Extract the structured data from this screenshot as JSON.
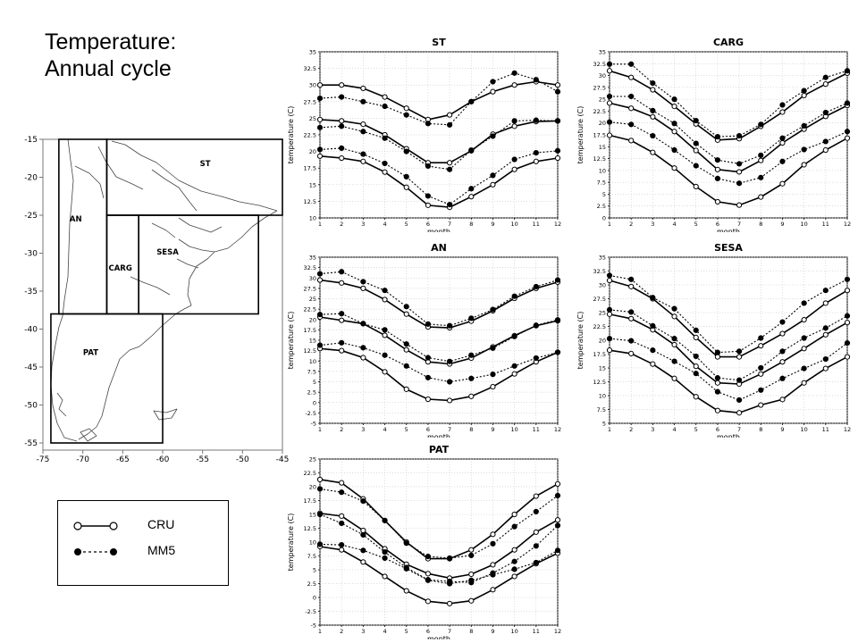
{
  "slide": {
    "title_line1": "Temperature:",
    "title_line2": "Annual cycle"
  },
  "legend": {
    "items": [
      {
        "label": "CRU",
        "style": "solid-open-circle"
      },
      {
        "label": "MM5",
        "style": "dotted-filled-circle"
      }
    ]
  },
  "map": {
    "lat_ticks": [
      "-15",
      "-20",
      "-25",
      "-30",
      "-35",
      "-40",
      "-45",
      "-50",
      "-55"
    ],
    "lon_ticks": [
      "-75",
      "-70",
      "-65",
      "-60",
      "-55",
      "-50",
      "-45"
    ],
    "regions": [
      {
        "name": "ST",
        "lon": [
          -67,
          -45
        ],
        "lat": [
          -15,
          -25
        ]
      },
      {
        "name": "AN",
        "lon": [
          -73,
          -67
        ],
        "lat": [
          -15,
          -38
        ]
      },
      {
        "name": "CARG",
        "lon": [
          -67,
          -63
        ],
        "lat": [
          -25,
          -38
        ]
      },
      {
        "name": "SESA",
        "lon": [
          -63,
          -48
        ],
        "lat": [
          -25,
          -38
        ]
      },
      {
        "name": "PAT",
        "lon": [
          -74,
          -60
        ],
        "lat": [
          -38,
          -55
        ]
      }
    ]
  },
  "chart_data": [
    {
      "type": "line",
      "title": "ST",
      "xlabel": "month",
      "ylabel": "temperature (C)",
      "x": [
        1,
        2,
        3,
        4,
        5,
        6,
        7,
        8,
        9,
        10,
        11,
        12
      ],
      "xlim": [
        1,
        12
      ],
      "ylim": [
        10,
        35
      ],
      "yticks": [
        "10",
        "12.5",
        "15",
        "17.5",
        "20",
        "22.5",
        "25",
        "27.5",
        "30",
        "32.5",
        "35"
      ],
      "grid": true,
      "series": [
        {
          "name": "CRU",
          "values": [
            30,
            30,
            29.5,
            28.2,
            26.5,
            24.8,
            25.5,
            27.5,
            29,
            30,
            30.5,
            30
          ]
        },
        {
          "name": "MM5",
          "values": [
            28,
            28.2,
            27.5,
            26.8,
            25.5,
            24.2,
            24,
            27.5,
            30.5,
            31.8,
            30.8,
            29
          ]
        },
        {
          "name": "CRU",
          "values": [
            24.8,
            24.6,
            24.1,
            22.5,
            20.4,
            18.3,
            18.3,
            20.1,
            22.6,
            23.8,
            24.5,
            24.6
          ]
        },
        {
          "name": "MM5",
          "values": [
            23.6,
            23.8,
            23,
            22,
            20,
            17.8,
            17.3,
            20.2,
            22.3,
            24.6,
            24.7,
            24.6
          ]
        },
        {
          "name": "CRU",
          "values": [
            19.3,
            19,
            18.5,
            16.9,
            14.6,
            11.9,
            11.6,
            13.2,
            15,
            17.3,
            18.5,
            19
          ]
        },
        {
          "name": "MM5",
          "values": [
            20.3,
            20.5,
            19.6,
            18.2,
            16.2,
            13.3,
            12,
            14.4,
            16.4,
            18.8,
            19.8,
            20.1
          ]
        }
      ]
    },
    {
      "type": "line",
      "title": "CARG",
      "xlabel": "month",
      "ylabel": "temperature (C)",
      "x": [
        1,
        2,
        3,
        4,
        5,
        6,
        7,
        8,
        9,
        10,
        11,
        12
      ],
      "xlim": [
        1,
        12
      ],
      "ylim": [
        0,
        35
      ],
      "yticks": [
        "0",
        "2.5",
        "5",
        "7.5",
        "10",
        "12.5",
        "15",
        "17.5",
        "20",
        "22.5",
        "25",
        "27.5",
        "30",
        "32.5",
        "35"
      ],
      "grid": true,
      "series": [
        {
          "name": "CRU",
          "values": [
            31,
            29.6,
            27,
            23.5,
            19.8,
            16.4,
            16.7,
            19.3,
            22.3,
            25.8,
            28.2,
            30.5
          ]
        },
        {
          "name": "MM5",
          "values": [
            32.4,
            32.4,
            28.4,
            25,
            20.5,
            17.1,
            17.3,
            19.7,
            23.8,
            26.8,
            29.6,
            31
          ]
        },
        {
          "name": "CRU",
          "values": [
            24.2,
            23.1,
            21.3,
            18.2,
            14.2,
            10.2,
            9.7,
            12.1,
            15.8,
            18.7,
            21.4,
            23.7
          ]
        },
        {
          "name": "MM5",
          "values": [
            25.6,
            25.6,
            22.6,
            19.9,
            15.7,
            12.2,
            11.4,
            13.2,
            16.8,
            19.4,
            22.2,
            24.2
          ]
        },
        {
          "name": "CRU",
          "values": [
            17.4,
            16.3,
            13.8,
            10.5,
            6.6,
            3.4,
            2.7,
            4.4,
            7.2,
            11.2,
            14.3,
            16.8
          ]
        },
        {
          "name": "MM5",
          "values": [
            20.2,
            19.7,
            17.3,
            14.3,
            11,
            8.3,
            7.3,
            8.5,
            11.9,
            14.4,
            16.1,
            18.2
          ]
        }
      ]
    },
    {
      "type": "line",
      "title": "AN",
      "xlabel": "month",
      "ylabel": "temperature (C)",
      "x": [
        1,
        2,
        3,
        4,
        5,
        6,
        7,
        8,
        9,
        10,
        11,
        12
      ],
      "xlim": [
        1,
        12
      ],
      "ylim": [
        -5,
        35
      ],
      "yticks": [
        "-5",
        "-2.5",
        "0",
        "2.5",
        "5",
        "7.5",
        "10",
        "12.5",
        "15",
        "17.5",
        "20",
        "22.5",
        "25",
        "27.5",
        "30",
        "32.5",
        "35"
      ],
      "grid": true,
      "series": [
        {
          "name": "CRU",
          "values": [
            29.5,
            28.8,
            27.5,
            24.8,
            21.3,
            18.2,
            18,
            19.6,
            22.1,
            25.1,
            27.5,
            29
          ]
        },
        {
          "name": "MM5",
          "values": [
            31,
            31.5,
            29.1,
            27,
            23.1,
            18.9,
            18.5,
            20.3,
            22.4,
            25.6,
            27.9,
            29.5
          ]
        },
        {
          "name": "CRU",
          "values": [
            20.6,
            19.8,
            19,
            16.2,
            12.7,
            9.8,
            9.3,
            10.7,
            13.4,
            16.1,
            18.5,
            19.7
          ]
        },
        {
          "name": "MM5",
          "values": [
            21.2,
            21.4,
            19,
            17.5,
            14.1,
            10.8,
            9.9,
            11.4,
            13.1,
            15.9,
            18.6,
            19.9
          ]
        },
        {
          "name": "CRU",
          "values": [
            13,
            12.5,
            10.8,
            7.4,
            3.2,
            0.8,
            0.5,
            1.5,
            3.8,
            6.9,
            9.8,
            12.1
          ]
        },
        {
          "name": "MM5",
          "values": [
            13.8,
            14.4,
            13.2,
            11.4,
            8.8,
            6,
            5,
            5.8,
            6.8,
            8.8,
            10.7,
            12.1
          ]
        }
      ]
    },
    {
      "type": "line",
      "title": "SESA",
      "xlabel": "month",
      "ylabel": "temperature (C)",
      "x": [
        1,
        2,
        3,
        4,
        5,
        6,
        7,
        8,
        9,
        10,
        11,
        12
      ],
      "xlim": [
        1,
        12
      ],
      "ylim": [
        5,
        35
      ],
      "yticks": [
        "5",
        "7.5",
        "10",
        "12.5",
        "15",
        "17.5",
        "20",
        "22.5",
        "25",
        "27.5",
        "30",
        "32.5",
        "35"
      ],
      "grid": true,
      "series": [
        {
          "name": "CRU",
          "values": [
            30.8,
            29.7,
            27.5,
            24.3,
            20.5,
            17,
            17,
            19,
            21.2,
            23.7,
            26.7,
            29
          ]
        },
        {
          "name": "MM5",
          "values": [
            31.7,
            31,
            27.7,
            25.7,
            21.8,
            17.8,
            18,
            20.4,
            23.3,
            26.7,
            29,
            31
          ]
        },
        {
          "name": "CRU",
          "values": [
            24.7,
            23.9,
            21.9,
            19.2,
            15.3,
            12.3,
            12.1,
            13.9,
            16.1,
            18.5,
            21,
            23.2
          ]
        },
        {
          "name": "MM5",
          "values": [
            25.5,
            25.1,
            22.6,
            20.3,
            17.1,
            13.2,
            12.8,
            15,
            18,
            20.4,
            22.2,
            24.4
          ]
        },
        {
          "name": "CRU",
          "values": [
            18.2,
            17.6,
            15.7,
            13.1,
            9.8,
            7.3,
            6.9,
            8.3,
            9.3,
            12.3,
            14.9,
            17
          ]
        },
        {
          "name": "MM5",
          "values": [
            20.3,
            19.9,
            18.2,
            16.2,
            14,
            10.7,
            9.2,
            11,
            13.1,
            14.9,
            16.6,
            19.5
          ]
        }
      ]
    },
    {
      "type": "line",
      "title": "PAT",
      "xlabel": "month",
      "ylabel": "temperature (C)",
      "x": [
        1,
        2,
        3,
        4,
        5,
        6,
        7,
        8,
        9,
        10,
        11,
        12
      ],
      "xlim": [
        1,
        12
      ],
      "ylim": [
        -5,
        25
      ],
      "yticks": [
        "-5",
        "-2.5",
        "0",
        "2.5",
        "5",
        "7.5",
        "10",
        "12.5",
        "15",
        "17.5",
        "20",
        "22.5",
        "25"
      ],
      "grid": true,
      "series": [
        {
          "name": "CRU",
          "values": [
            21.3,
            20.7,
            17.8,
            13.9,
            10,
            7,
            7,
            8.6,
            11.4,
            15,
            18.3,
            20.5
          ]
        },
        {
          "name": "MM5",
          "values": [
            19.6,
            19,
            17.4,
            13.9,
            9.8,
            7.4,
            7.1,
            7.6,
            9.7,
            12.8,
            15.5,
            18.4
          ]
        },
        {
          "name": "CRU",
          "values": [
            15.2,
            14.7,
            12.1,
            8.8,
            6,
            4.3,
            3.5,
            4.2,
            5.9,
            8.6,
            11.8,
            14
          ]
        },
        {
          "name": "MM5",
          "values": [
            15,
            13.4,
            11.3,
            8.2,
            5.4,
            3.2,
            2.9,
            2.7,
            4.4,
            6.5,
            9.3,
            13
          ]
        },
        {
          "name": "CRU",
          "values": [
            9.2,
            8.6,
            6.4,
            3.8,
            1.2,
            -0.7,
            -1.1,
            -0.6,
            1.4,
            3.8,
            6.1,
            8
          ]
        },
        {
          "name": "MM5",
          "values": [
            9.6,
            9.5,
            8.5,
            7.1,
            5.2,
            3.1,
            2.5,
            3.1,
            4.1,
            5.1,
            6.3,
            8.5
          ]
        }
      ]
    }
  ]
}
